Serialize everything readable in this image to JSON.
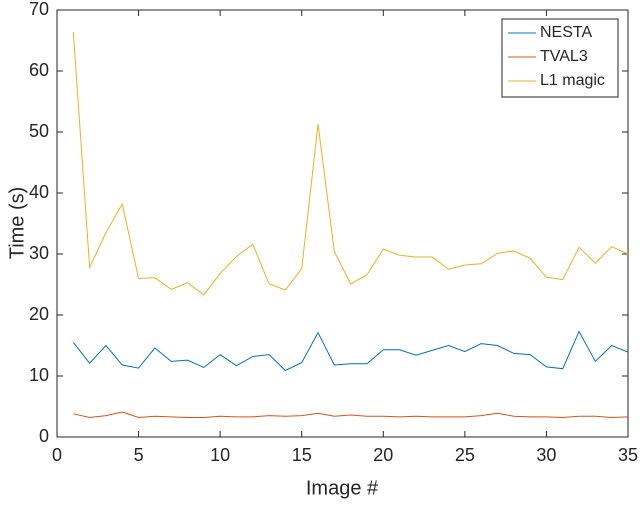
{
  "chart_data": {
    "type": "line",
    "xlabel": "Image #",
    "ylabel": "Time (s)",
    "x": [
      1,
      2,
      3,
      4,
      5,
      6,
      7,
      8,
      9,
      10,
      11,
      12,
      13,
      14,
      15,
      16,
      17,
      18,
      19,
      20,
      21,
      22,
      23,
      24,
      25,
      26,
      27,
      28,
      29,
      30,
      31,
      32,
      33,
      34,
      35
    ],
    "series": [
      {
        "name": "NESTA",
        "color": "#0072bd",
        "values": [
          15.5,
          12.1,
          15,
          11.8,
          11.3,
          14.6,
          12.4,
          12.6,
          11.4,
          13.5,
          11.7,
          13.2,
          13.5,
          10.9,
          12.2,
          17.1,
          11.8,
          12,
          12,
          14.3,
          14.3,
          13.4,
          14.2,
          15,
          14,
          15.3,
          15,
          13.7,
          13.5,
          11.5,
          11.2,
          17.3,
          12.4,
          15,
          13.9
        ]
      },
      {
        "name": "TVAL3",
        "color": "#d95319",
        "values": [
          3.8,
          3.2,
          3.5,
          4.1,
          3.2,
          3.4,
          3.3,
          3.2,
          3.2,
          3.4,
          3.3,
          3.3,
          3.5,
          3.4,
          3.5,
          3.9,
          3.4,
          3.6,
          3.4,
          3.4,
          3.3,
          3.4,
          3.3,
          3.3,
          3.3,
          3.5,
          3.9,
          3.4,
          3.3,
          3.3,
          3.2,
          3.4,
          3.4,
          3.2,
          3.3
        ]
      },
      {
        "name": "L1 magic",
        "color": "#edb120",
        "values": [
          66.4,
          27.8,
          33.5,
          38.2,
          26,
          26.1,
          24.2,
          25.3,
          23.3,
          26.8,
          29.6,
          31.6,
          25.1,
          24.1,
          27.6,
          51.3,
          30.4,
          25.1,
          26.6,
          30.8,
          29.8,
          29.5,
          29.5,
          27.5,
          28.2,
          28.4,
          30.1,
          30.5,
          29.3,
          26.2,
          25.8,
          31.1,
          28.5,
          31.2,
          30
        ]
      }
    ],
    "xlim": [
      0,
      35
    ],
    "xticks": [
      0,
      5,
      10,
      15,
      20,
      25,
      30,
      35
    ],
    "ylim": [
      0,
      70
    ],
    "yticks": [
      0,
      10,
      20,
      30,
      40,
      50,
      60,
      70
    ],
    "grid": false,
    "legend": "top-right"
  }
}
